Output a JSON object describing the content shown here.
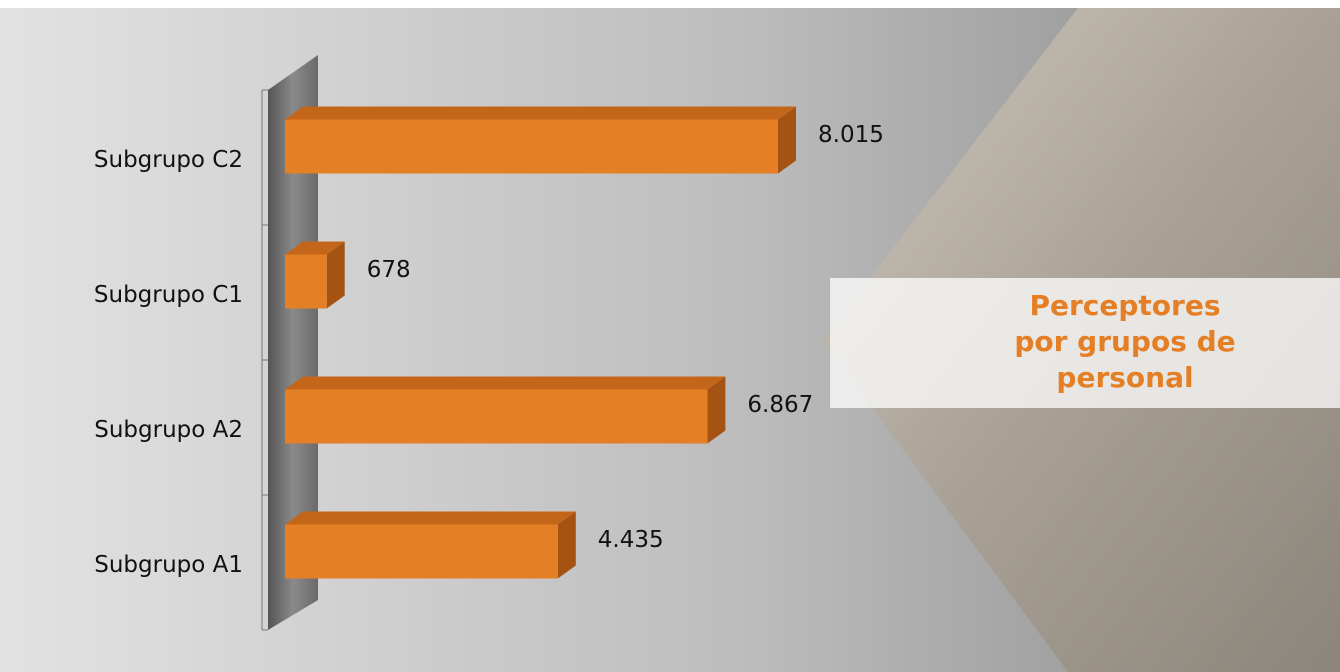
{
  "chart_data": {
    "type": "bar",
    "orientation": "horizontal",
    "title": "Perceptores por grupos de personal",
    "categories": [
      "Subgrupo C2",
      "Subgrupo C1",
      "Subgrupo A2",
      "Subgrupo A1"
    ],
    "values": [
      8015,
      678,
      6867,
      4435
    ],
    "value_labels": [
      "8.015",
      "678",
      "6.867",
      "4.435"
    ],
    "color": "#e47f26"
  }
}
